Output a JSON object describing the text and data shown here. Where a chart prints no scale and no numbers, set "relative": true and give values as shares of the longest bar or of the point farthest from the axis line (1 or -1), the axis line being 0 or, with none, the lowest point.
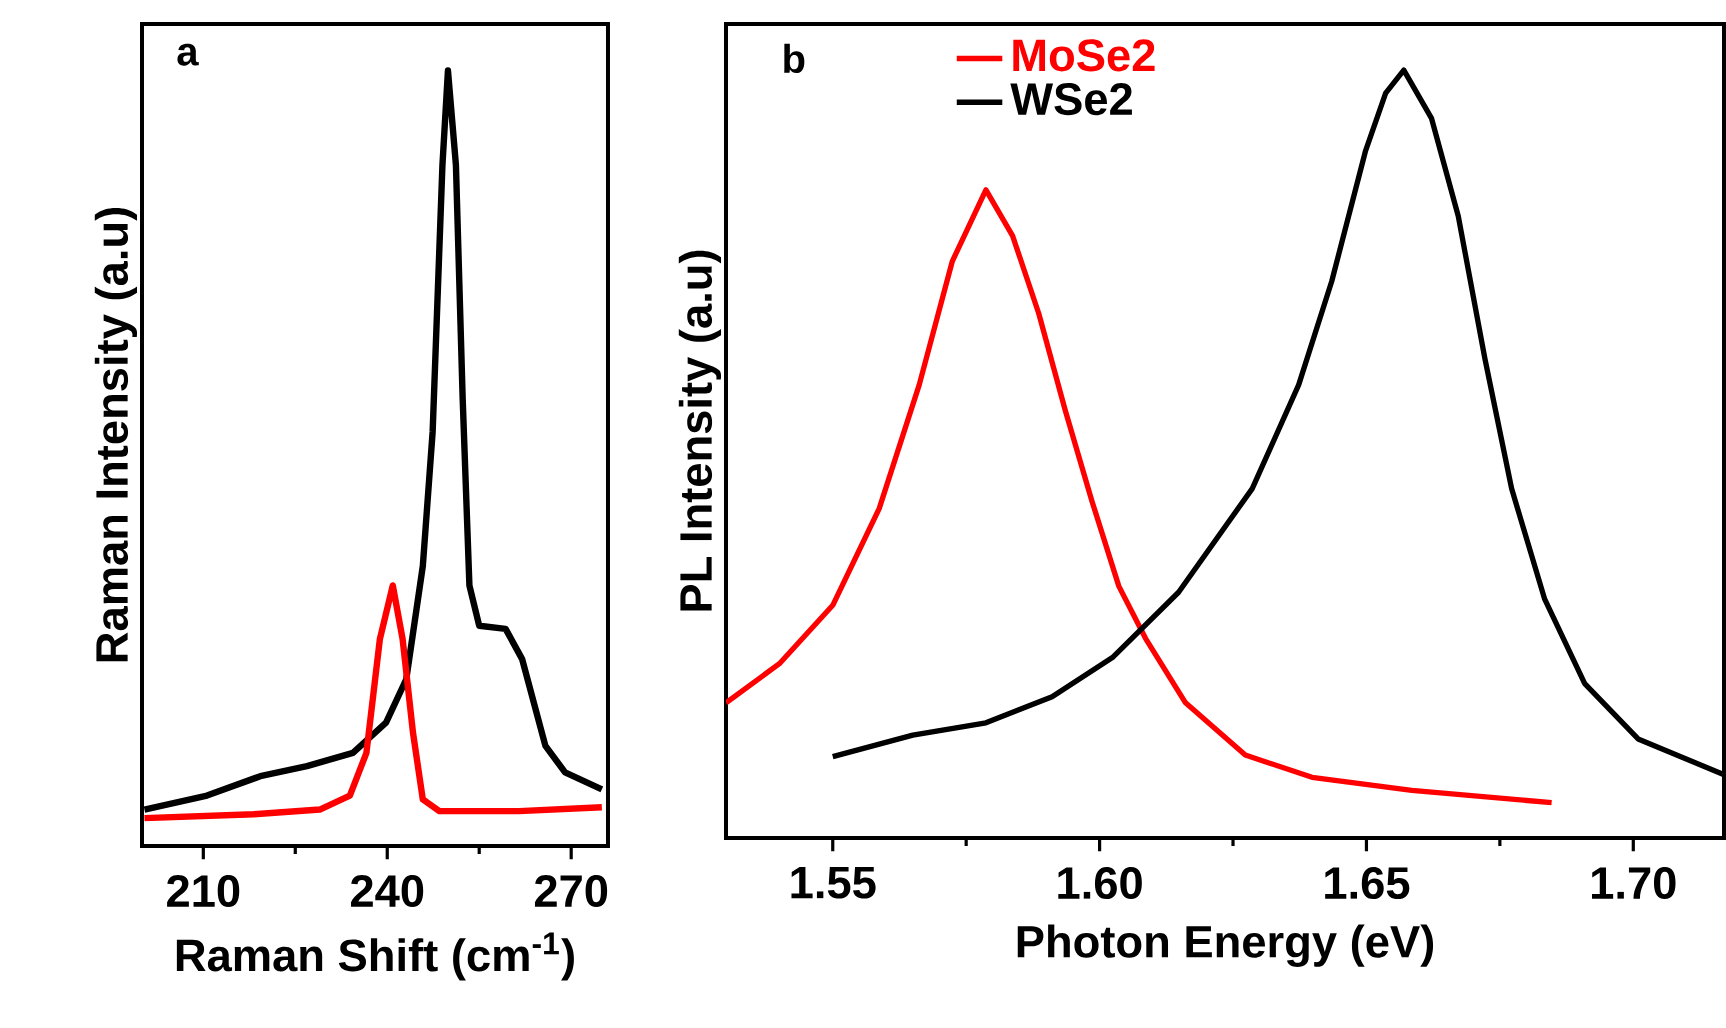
{
  "chart_data": [
    {
      "type": "line",
      "xlabel": "Raman Shift (cm$^{-1}$)",
      "ylabel": "Raman Intensity (a.u)",
      "relative": true,
      "xlim": [
        200,
        276
      ],
      "xticks": [
        210,
        240,
        270
      ],
      "annotations": [
        "a"
      ],
      "series": [
        {
          "color": "#000000",
          "x": [
            200.4,
            210.6,
            219.3,
            226.9,
            234.4,
            239.8,
            243.1,
            245.8,
            247.4,
            249.0,
            249.9,
            251.2,
            252.3,
            253.4,
            255.0,
            259.3,
            262.0,
            265.8,
            269.0,
            275.0
          ],
          "values": [
            0.047,
            0.065,
            0.09,
            0.103,
            0.12,
            0.159,
            0.215,
            0.361,
            0.534,
            0.878,
            1.0,
            0.878,
            0.577,
            0.336,
            0.284,
            0.28,
            0.241,
            0.129,
            0.095,
            0.073
          ]
        },
        {
          "color": "#ff0000",
          "x": [
            200.4,
            218.2,
            229.0,
            233.9,
            236.6,
            238.8,
            240.9,
            242.5,
            244.2,
            245.8,
            248.5,
            261.5,
            275.0
          ],
          "values": [
            0.036,
            0.041,
            0.047,
            0.065,
            0.12,
            0.267,
            0.336,
            0.267,
            0.146,
            0.06,
            0.045,
            0.045,
            0.05
          ]
        }
      ]
    },
    {
      "type": "line",
      "xlabel": "Photon Energy (eV)",
      "ylabel": "PL Intensity (a.u)",
      "relative": true,
      "xlim": [
        1.53,
        1.717
      ],
      "xticks": [
        1.55,
        {
          "value": 1.6,
          "label": "1.60"
        },
        1.65,
        {
          "value": 1.7,
          "label": "1.70"
        }
      ],
      "legend": "top",
      "annotations": [
        "b"
      ],
      "series": [
        {
          "name": "MoSe2",
          "color": "#ff0000",
          "x": [
            1.53,
            1.54,
            1.55,
            1.5587,
            1.5662,
            1.5724,
            1.5787,
            1.5837,
            1.5886,
            1.5936,
            1.5986,
            1.6036,
            1.6086,
            1.6161,
            1.6273,
            1.6398,
            1.6585,
            1.6847
          ],
          "values": [
            0.176,
            0.227,
            0.303,
            0.429,
            0.59,
            0.751,
            0.844,
            0.784,
            0.683,
            0.556,
            0.438,
            0.328,
            0.26,
            0.176,
            0.108,
            0.079,
            0.062,
            0.046
          ]
        },
        {
          "name": "WSe2",
          "color": "#000000",
          "x": [
            1.55,
            1.565,
            1.5787,
            1.5911,
            1.6024,
            1.6148,
            1.6286,
            1.6373,
            1.6435,
            1.6498,
            1.6536,
            1.657,
            1.6622,
            1.6672,
            1.6722,
            1.6772,
            1.6834,
            1.6909,
            1.7009,
            1.7168
          ],
          "values": [
            0.106,
            0.134,
            0.15,
            0.184,
            0.235,
            0.32,
            0.455,
            0.59,
            0.725,
            0.894,
            0.97,
            1.0,
            0.937,
            0.81,
            0.624,
            0.455,
            0.311,
            0.201,
            0.129,
            0.083
          ]
        }
      ]
    }
  ]
}
